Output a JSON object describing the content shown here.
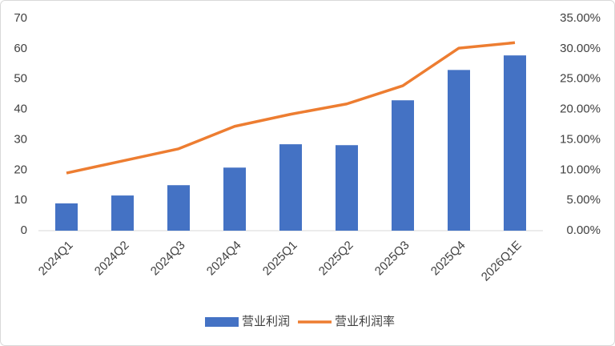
{
  "chart_data": {
    "type": "combo",
    "categories": [
      "2024Q1",
      "2024Q2",
      "2024Q3",
      "2024Q4",
      "2025Q1",
      "2025Q2",
      "2025Q3",
      "2025Q4",
      "2026Q1E"
    ],
    "series": [
      {
        "name": "营业利润",
        "type": "bar",
        "color": "#4472c4",
        "values": [
          9.0,
          11.6,
          15.0,
          20.8,
          28.5,
          28.2,
          43.0,
          53.0,
          57.8
        ]
      },
      {
        "name": "营业利润率",
        "type": "line",
        "axis": "y2",
        "color": "#ed7d31",
        "values": [
          9.5,
          11.5,
          13.5,
          17.2,
          19.2,
          20.9,
          23.9,
          30.1,
          31.0
        ]
      }
    ],
    "ylim": [
      0,
      70
    ],
    "yticks": [
      0,
      10,
      20,
      30,
      40,
      50,
      60,
      70
    ],
    "y2lim": [
      0,
      35
    ],
    "y2ticks": [
      {
        "value": 0,
        "label": "0.00%"
      },
      {
        "value": 5,
        "label": "5.00%"
      },
      {
        "value": 10,
        "label": "10.00%"
      },
      {
        "value": 15,
        "label": "15.00%"
      },
      {
        "value": 20,
        "label": "20.00%"
      },
      {
        "value": 25,
        "label": "25.00%"
      },
      {
        "value": 30,
        "label": "30.00%"
      },
      {
        "value": 35,
        "label": "35.00%"
      }
    ],
    "legend": "bottom"
  }
}
